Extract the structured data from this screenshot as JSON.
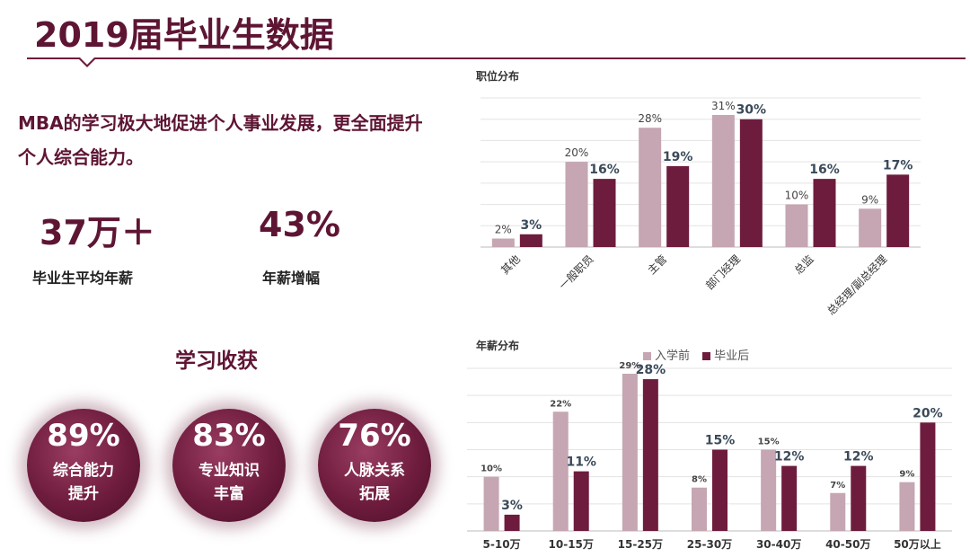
{
  "header": {
    "title": "2019届毕业生数据"
  },
  "intro": {
    "text": "MBA的学习极大地促进个人事业发展，更全面提升个人综合能力。"
  },
  "stats": [
    {
      "value": "37万＋",
      "label": "毕业生平均年薪"
    },
    {
      "value": "43%",
      "label": "年薪增幅"
    }
  ],
  "gains": {
    "title": "学习收获",
    "items": [
      {
        "value": "89%",
        "label1": "综合能力",
        "label2": "提升"
      },
      {
        "value": "83%",
        "label1": "专业知识",
        "label2": "丰富"
      },
      {
        "value": "76%",
        "label1": "人脉关系",
        "label2": "拓展"
      }
    ]
  },
  "colors": {
    "brand": "#5e1533",
    "before": "#c5a6b2",
    "after": "#6e1c3d"
  },
  "legend": {
    "before": "入学前",
    "after": "毕业后"
  },
  "chart_data": [
    {
      "type": "bar",
      "title": "职位分布",
      "categories": [
        "其他",
        "一般职员",
        "主管",
        "部门经理",
        "总监",
        "总经理/副总经理"
      ],
      "series": [
        {
          "name": "入学前",
          "values": [
            2,
            20,
            28,
            31,
            10,
            9
          ]
        },
        {
          "name": "毕业后",
          "values": [
            3,
            16,
            19,
            30,
            16,
            17
          ]
        }
      ],
      "value_suffix": "%",
      "ylim": [
        0,
        35
      ],
      "grid": true,
      "legend": "none"
    },
    {
      "type": "bar",
      "title": "年薪分布",
      "categories": [
        "5-10万",
        "10-15万",
        "15-25万",
        "25-30万",
        "30-40万",
        "40-50万",
        "50万以上"
      ],
      "series": [
        {
          "name": "入学前",
          "values": [
            10,
            22,
            29,
            8,
            15,
            7,
            9
          ]
        },
        {
          "name": "毕业后",
          "values": [
            3,
            11,
            28,
            15,
            12,
            12,
            20
          ]
        }
      ],
      "value_suffix": "%",
      "ylim": [
        0,
        30
      ],
      "grid": true,
      "legend": "top"
    }
  ]
}
